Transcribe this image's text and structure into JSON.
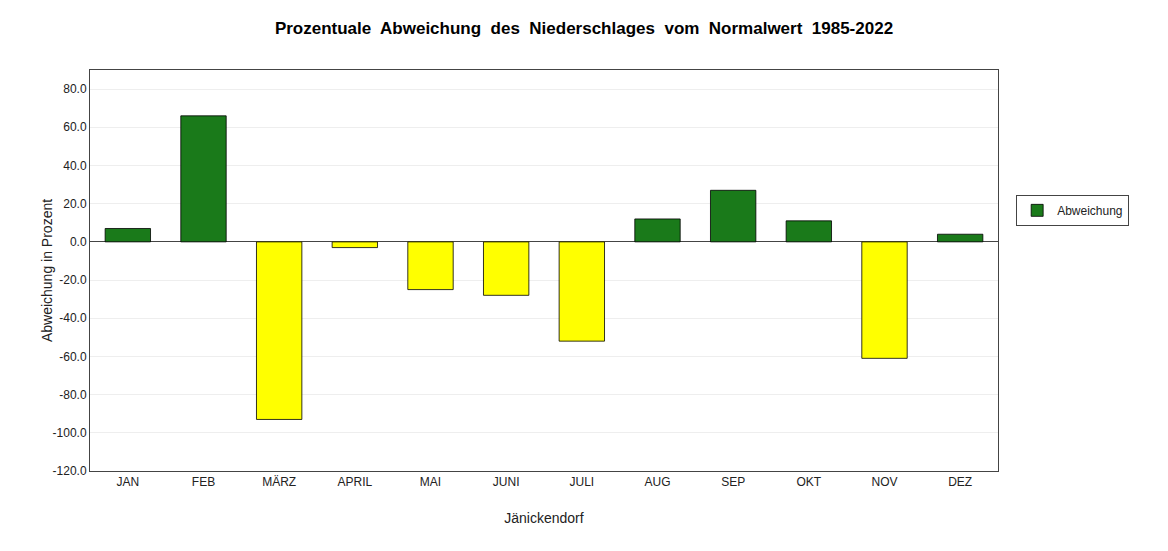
{
  "chart_data": {
    "type": "bar",
    "title": "Prozentuale  Abweichung  des  Niederschlages  vom  Normalwert  1985-2022",
    "xlabel": "Jänickendorf",
    "ylabel": "Abweichung in Prozent",
    "categories": [
      "JAN",
      "FEB",
      "MÄRZ",
      "APRIL",
      "MAI",
      "JUNI",
      "JULI",
      "AUG",
      "SEP",
      "OKT",
      "NOV",
      "DEZ"
    ],
    "series": [
      {
        "name": "Abweichung",
        "color": "#1a7a1a",
        "colors": [
          "#1a7a1a",
          "#1a7a1a",
          "#ffff00",
          "#ffff00",
          "#ffff00",
          "#ffff00",
          "#ffff00",
          "#1a7a1a",
          "#1a7a1a",
          "#1a7a1a",
          "#ffff00",
          "#1a7a1a"
        ],
        "values": [
          7.0,
          66.0,
          -93.0,
          -3.0,
          -25.0,
          -28.0,
          -52.0,
          12.0,
          27.0,
          11.0,
          -61.0,
          4.0
        ]
      }
    ],
    "ylim": [
      -120,
      90
    ],
    "yticks": [
      {
        "value": -120,
        "label": "-120.0"
      },
      {
        "value": -100,
        "label": "-100.0"
      },
      {
        "value": -80,
        "label": "-80.0"
      },
      {
        "value": -60,
        "label": "-60.0"
      },
      {
        "value": -40,
        "label": "-40.0"
      },
      {
        "value": -20,
        "label": "-20.0"
      },
      {
        "value": 0,
        "label": "0.0"
      },
      {
        "value": 20,
        "label": "20.0"
      },
      {
        "value": 40,
        "label": "40.0"
      },
      {
        "value": 60,
        "label": "60.0"
      },
      {
        "value": 80,
        "label": "80.0"
      }
    ],
    "grid": true,
    "legend": "right"
  }
}
